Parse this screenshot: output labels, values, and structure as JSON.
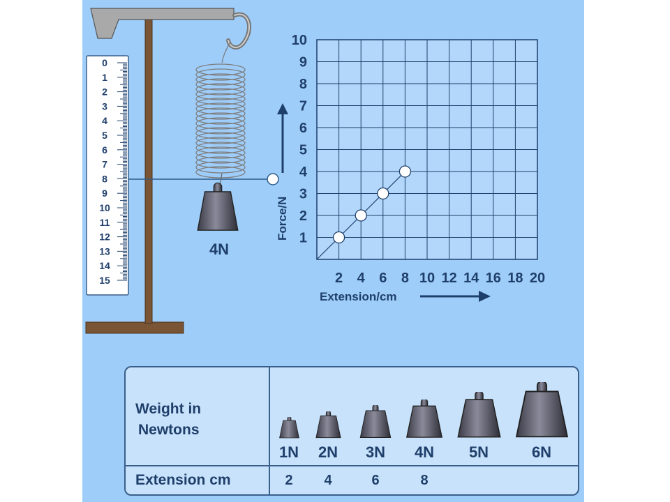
{
  "scale": {
    "marks": [
      "0",
      "1",
      "2",
      "3",
      "4",
      "5",
      "6",
      "7",
      "8",
      "9",
      "10",
      "11",
      "12",
      "13",
      "14",
      "15"
    ]
  },
  "spring": {
    "weight_label": "4N"
  },
  "chart_data": {
    "type": "scatter",
    "xlabel": "Extension/cm",
    "ylabel": "Force/N",
    "x_ticks": [
      "2",
      "4",
      "6",
      "8",
      "10",
      "12",
      "14",
      "16",
      "18",
      "20"
    ],
    "y_ticks": [
      "1",
      "2",
      "3",
      "4",
      "5",
      "6",
      "7",
      "8",
      "9",
      "10"
    ],
    "xlim": [
      0,
      20
    ],
    "ylim": [
      0,
      10
    ],
    "grid": true,
    "points": [
      {
        "x": 2,
        "y": 1
      },
      {
        "x": 4,
        "y": 2
      },
      {
        "x": 6,
        "y": 3
      },
      {
        "x": 8,
        "y": 4
      }
    ],
    "line": {
      "from": [
        0,
        0
      ],
      "to": [
        8,
        4
      ]
    }
  },
  "table": {
    "row1_header_line1": "Weight in",
    "row1_header_line2": "Newtons",
    "row2_header": "Extension cm",
    "weights": [
      "1N",
      "2N",
      "3N",
      "4N",
      "5N",
      "6N"
    ],
    "extensions": [
      "2",
      "4",
      "6",
      "8"
    ]
  },
  "colors": {
    "background": "#9fcdf9",
    "text": "#1f3f6b",
    "stand": "#7a5535",
    "grid_line": "#1f3f6b"
  }
}
